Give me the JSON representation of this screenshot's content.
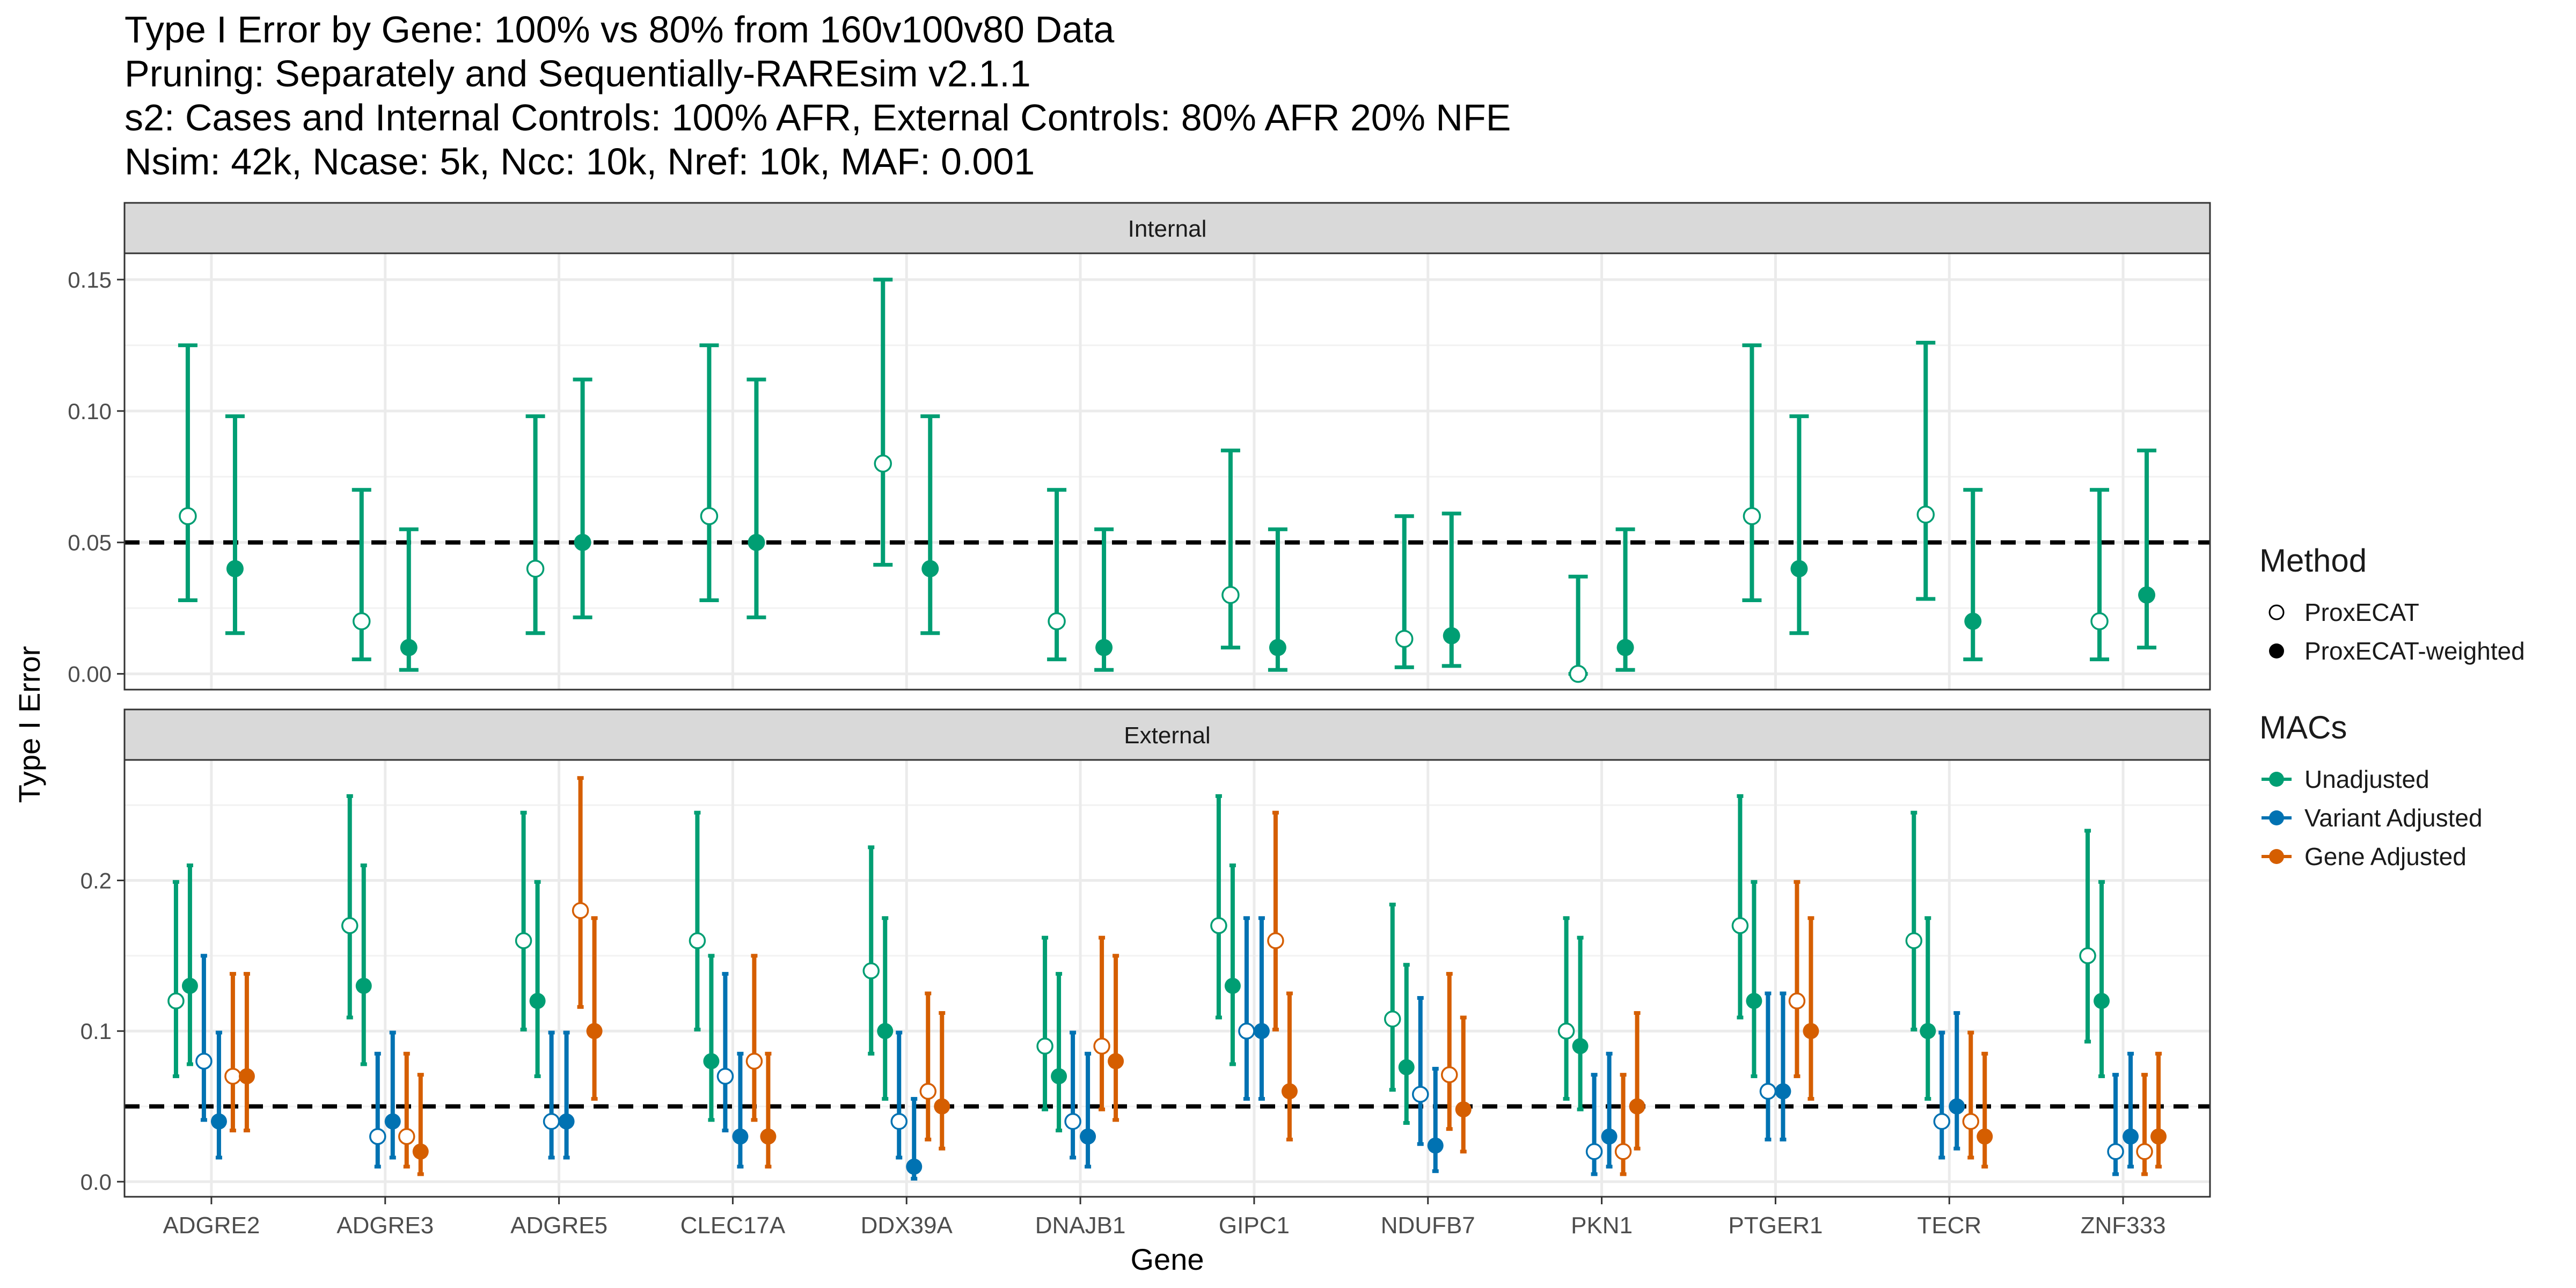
{
  "chart_data": {
    "type": "error-bar",
    "title": [
      "Type I Error by Gene: 100% vs 80% from 160v100v80 Data",
      "Pruning: Separately and Sequentially-RAREsim v2.1.1",
      "s2: Cases and Internal Controls: 100% AFR, External Controls: 80% AFR 20% NFE",
      "Nsim: 42k, Ncase: 5k, Ncc: 10k, Nref: 10k, MAF: 0.001"
    ],
    "xlabel": "Gene",
    "ylabel": "Type I Error",
    "reference_line": 0.05,
    "categories": [
      "ADGRE2",
      "ADGRE3",
      "ADGRE5",
      "CLEC17A",
      "DDX39A",
      "DNAJB1",
      "GIPC1",
      "NDUFB7",
      "PKN1",
      "PTGER1",
      "TECR",
      "ZNF333"
    ],
    "legend": {
      "method_title": "Method",
      "method_items": [
        "ProxECAT",
        "ProxECAT-weighted"
      ],
      "macs_title": "MACs",
      "macs_items": [
        "Unadjusted",
        "Variant Adjusted",
        "Gene Adjusted"
      ],
      "colors": {
        "Unadjusted": "#009E73",
        "Variant Adjusted": "#0072B2",
        "Gene Adjusted": "#D55E00"
      }
    },
    "panels": [
      {
        "name": "Internal",
        "ylim": [
          -0.006,
          0.16
        ],
        "yticks": [
          0.0,
          0.05,
          0.1,
          0.15
        ],
        "ytick_labels": [
          "0.00",
          "0.05",
          "0.10",
          "0.15"
        ],
        "series": [
          {
            "method": "ProxECAT",
            "macs": "Unadjusted",
            "values": [
              0.06,
              0.02,
              0.04,
              0.06,
              0.08,
              0.02,
              0.03,
              0.0133,
              0.0,
              0.06,
              0.0606,
              0.02
            ],
            "lower": [
              0.028,
              0.0055,
              0.0155,
              0.028,
              0.0415,
              0.0055,
              0.01,
              0.0025,
              0.0,
              0.028,
              0.0285,
              0.0055
            ],
            "upper": [
              0.125,
              0.07,
              0.098,
              0.125,
              0.15,
              0.07,
              0.085,
              0.06,
              0.037,
              0.125,
              0.126,
              0.07
            ]
          },
          {
            "method": "ProxECAT-weighted",
            "macs": "Unadjusted",
            "values": [
              0.04,
              0.01,
              0.05,
              0.05,
              0.04,
              0.01,
              0.01,
              0.0145,
              0.01,
              0.04,
              0.02,
              0.03
            ],
            "lower": [
              0.0155,
              0.0015,
              0.0215,
              0.0215,
              0.0155,
              0.0015,
              0.0015,
              0.003,
              0.0015,
              0.0155,
              0.0055,
              0.01
            ],
            "upper": [
              0.098,
              0.055,
              0.112,
              0.112,
              0.098,
              0.055,
              0.055,
              0.061,
              0.055,
              0.098,
              0.07,
              0.085
            ]
          }
        ]
      },
      {
        "name": "External",
        "ylim": [
          -0.01,
          0.28
        ],
        "yticks": [
          0.0,
          0.1,
          0.2
        ],
        "ytick_labels": [
          "0.0",
          "0.1",
          "0.2"
        ],
        "series": [
          {
            "method": "ProxECAT",
            "macs": "Unadjusted",
            "values": [
              0.12,
              0.17,
              0.16,
              0.16,
              0.14,
              0.09,
              0.17,
              0.108,
              0.1,
              0.17,
              0.16,
              0.15
            ],
            "lower": [
              0.07,
              0.109,
              0.101,
              0.101,
              0.085,
              0.048,
              0.109,
              0.061,
              0.055,
              0.109,
              0.101,
              0.093
            ],
            "upper": [
              0.199,
              0.256,
              0.245,
              0.245,
              0.222,
              0.162,
              0.256,
              0.184,
              0.175,
              0.256,
              0.245,
              0.233
            ]
          },
          {
            "method": "ProxECAT-weighted",
            "macs": "Unadjusted",
            "values": [
              0.13,
              0.13,
              0.12,
              0.08,
              0.1,
              0.07,
              0.13,
              0.076,
              0.09,
              0.12,
              0.1,
              0.12
            ],
            "lower": [
              0.078,
              0.078,
              0.07,
              0.041,
              0.055,
              0.034,
              0.078,
              0.039,
              0.048,
              0.07,
              0.055,
              0.07
            ],
            "upper": [
              0.21,
              0.21,
              0.199,
              0.15,
              0.175,
              0.138,
              0.21,
              0.144,
              0.162,
              0.199,
              0.175,
              0.199
            ]
          },
          {
            "method": "ProxECAT",
            "macs": "Variant Adjusted",
            "values": [
              0.08,
              0.03,
              0.04,
              0.07,
              0.04,
              0.04,
              0.1,
              0.058,
              0.02,
              0.06,
              0.04,
              0.02
            ],
            "lower": [
              0.041,
              0.01,
              0.016,
              0.034,
              0.016,
              0.016,
              0.055,
              0.025,
              0.005,
              0.028,
              0.016,
              0.005
            ],
            "upper": [
              0.15,
              0.085,
              0.099,
              0.138,
              0.099,
              0.099,
              0.175,
              0.122,
              0.071,
              0.125,
              0.099,
              0.071
            ]
          },
          {
            "method": "ProxECAT-weighted",
            "macs": "Variant Adjusted",
            "values": [
              0.04,
              0.04,
              0.04,
              0.03,
              0.01,
              0.03,
              0.1,
              0.024,
              0.03,
              0.06,
              0.05,
              0.03
            ],
            "lower": [
              0.016,
              0.016,
              0.016,
              0.01,
              0.002,
              0.01,
              0.055,
              0.007,
              0.01,
              0.028,
              0.022,
              0.01
            ],
            "upper": [
              0.099,
              0.099,
              0.099,
              0.085,
              0.055,
              0.085,
              0.175,
              0.075,
              0.085,
              0.125,
              0.112,
              0.085
            ]
          },
          {
            "method": "ProxECAT",
            "macs": "Gene Adjusted",
            "values": [
              0.07,
              0.03,
              0.18,
              0.08,
              0.06,
              0.09,
              0.16,
              0.071,
              0.02,
              0.12,
              0.04,
              0.02
            ],
            "lower": [
              0.034,
              0.01,
              0.116,
              0.041,
              0.028,
              0.048,
              0.101,
              0.035,
              0.005,
              0.07,
              0.016,
              0.005
            ],
            "upper": [
              0.138,
              0.085,
              0.268,
              0.15,
              0.125,
              0.162,
              0.245,
              0.138,
              0.071,
              0.199,
              0.099,
              0.071
            ]
          },
          {
            "method": "ProxECAT-weighted",
            "macs": "Gene Adjusted",
            "values": [
              0.07,
              0.02,
              0.1,
              0.03,
              0.05,
              0.08,
              0.06,
              0.048,
              0.05,
              0.1,
              0.03,
              0.03
            ],
            "lower": [
              0.034,
              0.005,
              0.055,
              0.01,
              0.022,
              0.041,
              0.028,
              0.02,
              0.022,
              0.055,
              0.01,
              0.01
            ],
            "upper": [
              0.138,
              0.071,
              0.175,
              0.085,
              0.112,
              0.15,
              0.125,
              0.109,
              0.112,
              0.175,
              0.085,
              0.085
            ]
          }
        ]
      }
    ]
  }
}
